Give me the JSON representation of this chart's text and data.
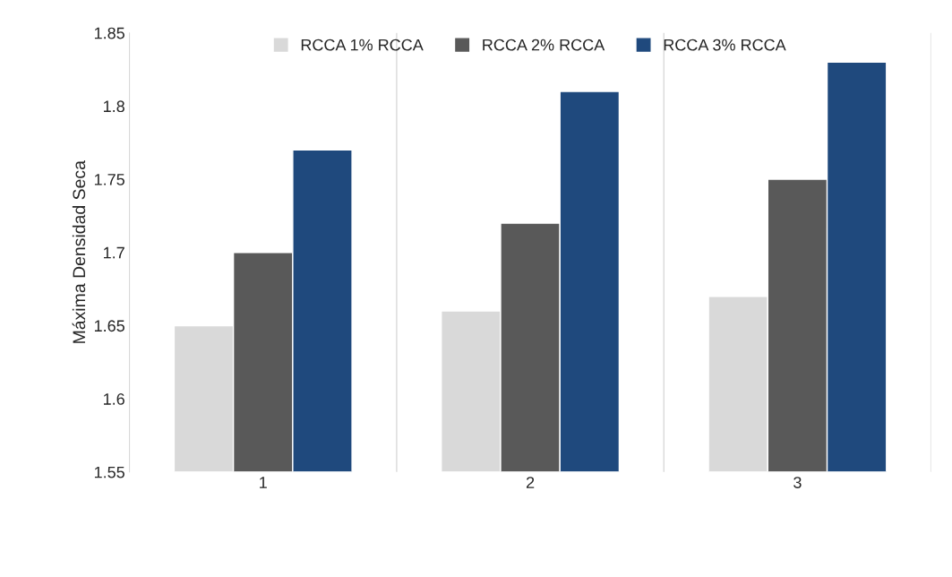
{
  "chart_data": {
    "type": "bar",
    "ylabel": "Máxima Densidad Seca",
    "categories": [
      "1",
      "2",
      "3"
    ],
    "series": [
      {
        "name": "RCCA 1% RCCA",
        "color": "#d9d9d9",
        "values": [
          1.65,
          1.66,
          1.67
        ]
      },
      {
        "name": "RCCA 2% RCCA",
        "color": "#595959",
        "values": [
          1.7,
          1.72,
          1.75
        ]
      },
      {
        "name": "RCCA 3% RCCA",
        "color": "#1f497d",
        "values": [
          1.77,
          1.81,
          1.83
        ]
      }
    ],
    "ylim": [
      1.55,
      1.85
    ],
    "yticks": [
      1.55,
      1.6,
      1.65,
      1.7,
      1.75,
      1.8,
      1.85
    ],
    "grid": "x",
    "legend": "top"
  }
}
